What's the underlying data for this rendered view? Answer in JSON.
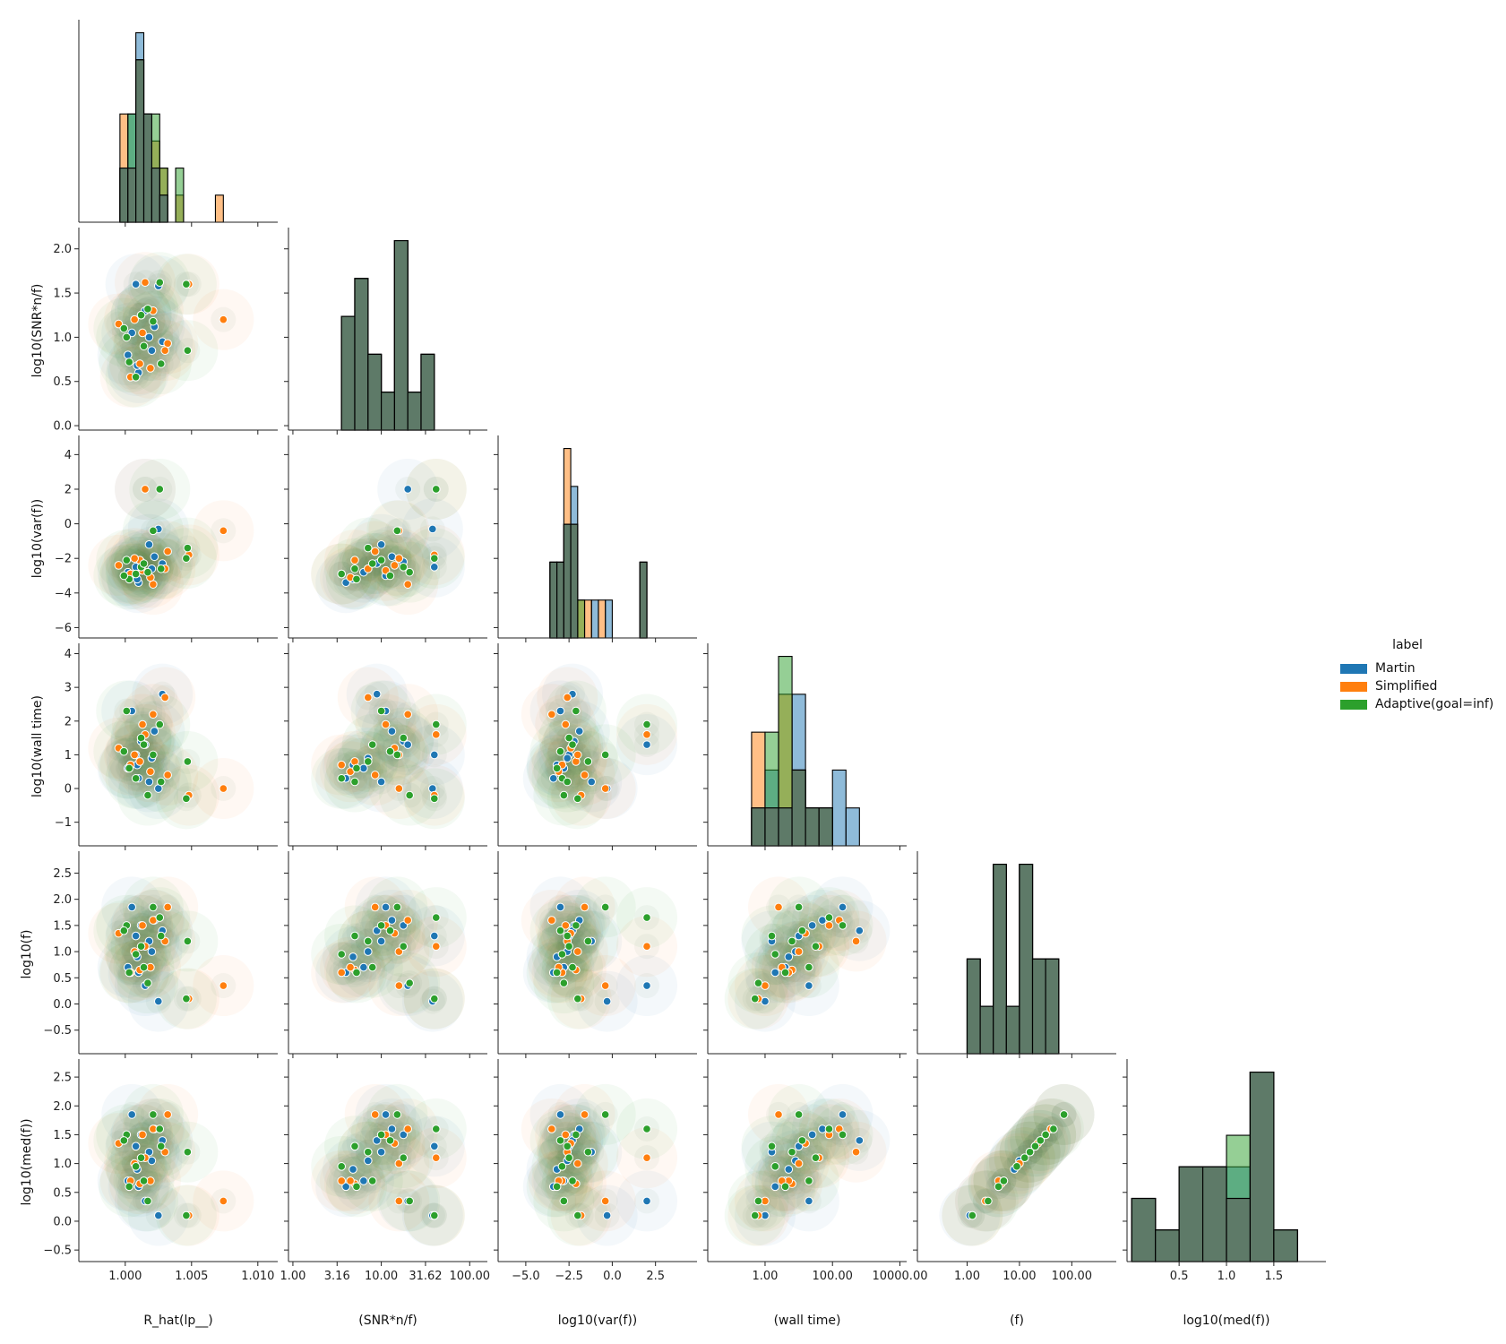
{
  "colors": {
    "Martin": "#1f77b4",
    "Simplified": "#ff7f0e",
    "Adaptive(goal=inf)": "#2ca02c",
    "overlap": "#5e7a68"
  },
  "legend": {
    "title": "label",
    "items": [
      {
        "name": "Martin",
        "color": "#1f77b4"
      },
      {
        "name": "Simplified",
        "color": "#ff7f0e"
      },
      {
        "name": "Adaptive(goal=inf)",
        "color": "#2ca02c"
      }
    ]
  },
  "chart_data": {
    "type": "scatter",
    "title": "",
    "variables": [
      {
        "key": "rhat",
        "label": "R_hat(lp__)",
        "scale": "linear",
        "range": [
          0.9965,
          1.0115
        ],
        "ticks": [
          1.0,
          1.005,
          1.01
        ],
        "tick_labels": [
          "1.000",
          "1.005",
          "1.010"
        ]
      },
      {
        "key": "snr",
        "label": "log10(SNR*n/f)",
        "xlabel": "(SNR*n/f)",
        "scale": "log",
        "range": [
          -0.05,
          2.2
        ],
        "ticks": [
          0,
          0.5,
          1.0,
          1.5,
          2.0
        ],
        "tick_labels": [
          "0.0",
          "0.5",
          "1.0",
          "1.5",
          "2.0"
        ],
        "x_ticks": [
          0,
          0.5,
          1.0,
          1.5,
          2.0
        ],
        "x_tick_labels": [
          "1.00",
          "3.16",
          "10.00",
          "31.62",
          "100.00"
        ]
      },
      {
        "key": "var",
        "label": "log10(var(f))",
        "scale": "linear",
        "range": [
          -6.6,
          4.9
        ],
        "ticks": [
          -6,
          -4,
          -2,
          0,
          2,
          4
        ],
        "tick_labels": [
          "−6",
          "−4",
          "−2",
          "0",
          "2",
          "4"
        ],
        "x_ticks": [
          -5,
          -2.5,
          0,
          2.5
        ],
        "x_tick_labels": [
          "−5.0",
          "−2.5",
          "0.0",
          "2.5"
        ]
      },
      {
        "key": "wall",
        "label": "log10(wall time)",
        "xlabel": "(wall time)",
        "scale": "log",
        "range": [
          -1.7,
          4.2
        ],
        "ticks": [
          -1,
          0,
          1,
          2,
          3,
          4
        ],
        "tick_labels": [
          "−1",
          "0",
          "1",
          "2",
          "3",
          "4"
        ],
        "x_ticks": [
          0,
          2,
          4
        ],
        "x_tick_labels": [
          "1.00",
          "100.00",
          "10000.00"
        ]
      },
      {
        "key": "f",
        "label": "log10(f)",
        "xlabel": "(f)",
        "scale": "log",
        "range": [
          -0.95,
          2.85
        ],
        "ticks": [
          -0.5,
          0,
          0.5,
          1.0,
          1.5,
          2.0,
          2.5
        ],
        "tick_labels": [
          "−0.5",
          "0.0",
          "0.5",
          "1.0",
          "1.5",
          "2.0",
          "2.5"
        ],
        "x_ticks": [
          0,
          1,
          2
        ],
        "x_tick_labels": [
          "1.00",
          "10.00",
          "100.00"
        ]
      },
      {
        "key": "med",
        "label": "log10(med(f))",
        "scale": "linear",
        "range": [
          -0.7,
          2.75
        ],
        "ticks": [
          -0.5,
          0,
          0.5,
          1.0,
          1.5,
          2.0,
          2.5
        ],
        "tick_labels": [
          "−0.5",
          "0.0",
          "0.5",
          "1.0",
          "1.5",
          "2.0",
          "2.5"
        ],
        "x_range": [
          -0.05,
          2.05
        ],
        "x_ticks": [
          0.5,
          1.0,
          1.5
        ],
        "x_tick_labels": [
          "0.5",
          "1.0",
          "1.5"
        ]
      }
    ],
    "series": [
      {
        "name": "Martin",
        "points": [
          {
            "rhat": 1.0008,
            "snr": 1.6,
            "var": -2.5,
            "wall": 1.0,
            "f": 1.3,
            "med": 1.3
          },
          {
            "rhat": 1.0012,
            "snr": 1.25,
            "var": -2.2,
            "wall": 1.4,
            "f": 1.5,
            "med": 1.5
          },
          {
            "rhat": 1.0022,
            "snr": 1.12,
            "var": -1.9,
            "wall": 1.7,
            "f": 1.6,
            "med": 1.6
          },
          {
            "rhat": 1.0005,
            "snr": 1.05,
            "var": -3.0,
            "wall": 2.3,
            "f": 1.85,
            "med": 1.85
          },
          {
            "rhat": 1.001,
            "snr": 0.6,
            "var": -3.4,
            "wall": 0.3,
            "f": 0.6,
            "med": 0.6
          },
          {
            "rhat": 1.002,
            "snr": 0.85,
            "var": -2.6,
            "wall": 0.9,
            "f": 1.0,
            "med": 1.05
          },
          {
            "rhat": 1.0002,
            "snr": 0.8,
            "var": -2.8,
            "wall": 0.6,
            "f": 0.7,
            "med": 0.7
          },
          {
            "rhat": 1.0015,
            "snr": 1.3,
            "var": 2.0,
            "wall": 1.3,
            "f": 0.35,
            "med": 0.35
          },
          {
            "rhat": 1.0025,
            "snr": 1.58,
            "var": -0.3,
            "wall": 0.0,
            "f": 0.05,
            "med": 0.1
          },
          {
            "rhat": 1.0018,
            "snr": 1.0,
            "var": -1.2,
            "wall": 0.2,
            "f": 1.2,
            "med": 1.2
          },
          {
            "rhat": 1.0028,
            "snr": 0.95,
            "var": -2.3,
            "wall": 2.8,
            "f": 1.4,
            "med": 1.4
          },
          {
            "rhat": 1.0009,
            "snr": 0.68,
            "var": -3.2,
            "wall": 0.7,
            "f": 0.9,
            "med": 0.9
          }
        ]
      },
      {
        "name": "Simplified",
        "points": [
          {
            "rhat": 0.9995,
            "snr": 1.15,
            "var": -2.4,
            "wall": 1.2,
            "f": 1.35,
            "med": 1.35
          },
          {
            "rhat": 1.0011,
            "snr": 0.7,
            "var": -2.1,
            "wall": 0.8,
            "f": 0.65,
            "med": 0.65
          },
          {
            "rhat": 1.0021,
            "snr": 1.3,
            "var": -3.5,
            "wall": 2.2,
            "f": 1.6,
            "med": 1.6
          },
          {
            "rhat": 1.0032,
            "snr": 0.93,
            "var": -1.6,
            "wall": 0.4,
            "f": 1.85,
            "med": 1.85
          },
          {
            "rhat": 1.0004,
            "snr": 0.55,
            "var": -2.9,
            "wall": 0.7,
            "f": 0.6,
            "med": 0.7
          },
          {
            "rhat": 1.0015,
            "snr": 1.62,
            "var": 2.0,
            "wall": 1.6,
            "f": 1.1,
            "med": 1.1
          },
          {
            "rhat": 1.0074,
            "snr": 1.2,
            "var": -0.4,
            "wall": 0.0,
            "f": 0.35,
            "med": 0.35
          },
          {
            "rhat": 1.0048,
            "snr": 1.6,
            "var": -1.8,
            "wall": -0.2,
            "f": 0.1,
            "med": 0.1
          },
          {
            "rhat": 1.003,
            "snr": 0.85,
            "var": -2.6,
            "wall": 2.7,
            "f": 1.2,
            "med": 1.2
          },
          {
            "rhat": 1.0007,
            "snr": 1.2,
            "var": -2.0,
            "wall": 1.0,
            "f": 1.0,
            "med": 1.0
          },
          {
            "rhat": 1.0019,
            "snr": 0.65,
            "var": -3.1,
            "wall": 0.5,
            "f": 0.7,
            "med": 0.7
          },
          {
            "rhat": 1.0013,
            "snr": 1.05,
            "var": -2.7,
            "wall": 1.9,
            "f": 1.5,
            "med": 1.5
          }
        ]
      },
      {
        "name": "Adaptive(goal=inf)",
        "points": [
          {
            "rhat": 1.0001,
            "snr": 1.0,
            "var": -2.1,
            "wall": 2.3,
            "f": 1.5,
            "med": 1.5
          },
          {
            "rhat": 1.0012,
            "snr": 1.25,
            "var": -2.5,
            "wall": 1.5,
            "f": 1.1,
            "med": 1.1
          },
          {
            "rhat": 1.0026,
            "snr": 1.62,
            "var": 2.0,
            "wall": 1.9,
            "f": 1.65,
            "med": 1.6
          },
          {
            "rhat": 1.0047,
            "snr": 0.85,
            "var": -1.4,
            "wall": 0.8,
            "f": 1.2,
            "med": 1.2
          },
          {
            "rhat": 1.0046,
            "snr": 1.6,
            "var": -2.0,
            "wall": -0.3,
            "f": 0.1,
            "med": 0.1
          },
          {
            "rhat": 1.0003,
            "snr": 0.72,
            "var": -3.2,
            "wall": 0.6,
            "f": 0.6,
            "med": 0.6
          },
          {
            "rhat": 1.0017,
            "snr": 1.32,
            "var": -2.8,
            "wall": -0.2,
            "f": 0.4,
            "med": 0.35
          },
          {
            "rhat": 1.0008,
            "snr": 0.55,
            "var": -2.9,
            "wall": 0.3,
            "f": 0.95,
            "med": 0.95
          },
          {
            "rhat": 1.0021,
            "snr": 1.18,
            "var": -0.4,
            "wall": 1.0,
            "f": 1.85,
            "med": 1.85
          },
          {
            "rhat": 1.0014,
            "snr": 0.9,
            "var": -2.3,
            "wall": 1.3,
            "f": 0.7,
            "med": 0.7
          },
          {
            "rhat": 1.0027,
            "snr": 0.7,
            "var": -2.6,
            "wall": 0.2,
            "f": 1.3,
            "med": 1.3
          },
          {
            "rhat": 0.9999,
            "snr": 1.1,
            "var": -3.0,
            "wall": 1.1,
            "f": 1.4,
            "med": 1.4
          }
        ]
      }
    ],
    "histograms": {
      "rhat": {
        "bins": [
          0.9996,
          1.0002,
          1.0008,
          1.0014,
          1.002,
          1.0026,
          1.0032,
          1.0038,
          1.0044,
          1.005,
          1.0056,
          1.0062,
          1.0068,
          1.0074,
          1.008
        ],
        "counts": {
          "Martin": [
            2,
            4,
            7,
            4,
            2,
            1,
            0,
            0,
            0,
            0,
            0,
            0,
            0,
            0
          ],
          "Simplified": [
            4,
            2,
            6,
            4,
            3,
            2,
            0,
            1,
            0,
            0,
            0,
            0,
            1,
            0
          ],
          "Adaptive(goal=inf)": [
            2,
            4,
            6,
            4,
            4,
            2,
            0,
            2,
            0,
            0,
            0,
            0,
            0,
            0
          ]
        }
      },
      "snr": {
        "bins": [
          0.55,
          0.7,
          0.85,
          1.0,
          1.15,
          1.3,
          1.45,
          1.6
        ],
        "counts": {
          "Martin": [
            3,
            4,
            2,
            1,
            5,
            1,
            2
          ],
          "Simplified": [
            3,
            4,
            2,
            1,
            5,
            1,
            2
          ],
          "Adaptive(goal=inf)": [
            3,
            4,
            2,
            1,
            5,
            1,
            2
          ]
        }
      },
      "var": {
        "bins": [
          -3.6,
          -3.2,
          -2.8,
          -2.4,
          -2.0,
          -1.6,
          -1.2,
          -0.8,
          -0.4,
          0.0,
          0.4,
          0.8,
          1.2,
          1.6,
          2.0
        ],
        "counts": {
          "Martin": [
            2,
            2,
            3,
            4,
            0,
            0,
            1,
            0,
            1,
            0,
            0,
            0,
            0,
            2
          ],
          "Simplified": [
            2,
            2,
            5,
            3,
            1,
            1,
            0,
            1,
            0,
            0,
            0,
            0,
            0,
            2
          ],
          "Adaptive(goal=inf)": [
            2,
            2,
            3,
            3,
            1,
            0,
            0,
            0,
            0,
            0,
            0,
            0,
            0,
            2
          ]
        }
      },
      "wall": {
        "bins": [
          -0.4,
          0.0,
          0.4,
          0.8,
          1.2,
          1.6,
          2.0,
          2.4,
          2.8
        ],
        "counts": {
          "Martin": [
            1,
            2,
            1,
            4,
            1,
            1,
            2,
            1
          ],
          "Simplified": [
            3,
            1,
            4,
            2,
            1,
            1,
            0,
            0
          ],
          "Adaptive(goal=inf)": [
            1,
            3,
            5,
            2,
            1,
            1,
            0,
            0
          ]
        }
      },
      "f": {
        "bins": [
          0.0,
          0.25,
          0.5,
          0.75,
          1.0,
          1.25,
          1.5,
          1.75,
          2.0
        ],
        "counts": {
          "Martin": [
            2,
            1,
            4,
            1,
            4,
            2,
            2,
            0
          ],
          "Simplified": [
            2,
            1,
            4,
            1,
            4,
            2,
            2,
            0
          ],
          "Adaptive(goal=inf)": [
            2,
            1,
            4,
            1,
            4,
            2,
            2,
            0
          ]
        }
      },
      "med": {
        "bins": [
          0.0,
          0.25,
          0.5,
          0.75,
          1.0,
          1.25,
          1.5,
          1.75,
          2.0
        ],
        "counts": {
          "Martin": [
            2,
            1,
            3,
            3,
            3,
            6,
            1,
            0
          ],
          "Simplified": [
            2,
            1,
            3,
            3,
            2,
            6,
            1,
            0
          ],
          "Adaptive(goal=inf)": [
            2,
            1,
            3,
            3,
            4,
            6,
            1,
            0
          ]
        }
      }
    }
  }
}
